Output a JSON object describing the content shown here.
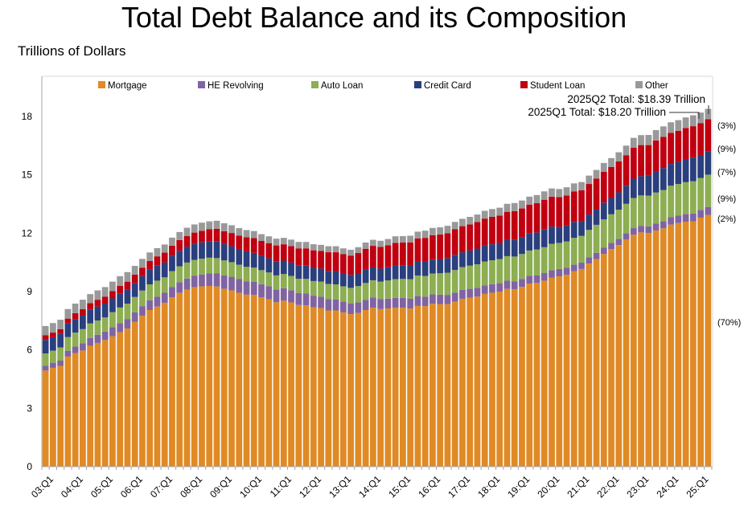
{
  "chart_data": {
    "type": "bar",
    "stacked": true,
    "title": "Total Debt Balance and its Composition",
    "ylabel": "Trillions of Dollars",
    "ylim": [
      0,
      19.5
    ],
    "yticks": [
      0,
      3,
      6,
      9,
      12,
      15,
      18
    ],
    "xtick_labels": [
      "03:Q1",
      "04:Q1",
      "05:Q1",
      "06:Q1",
      "07:Q1",
      "08:Q1",
      "09:Q1",
      "10:Q1",
      "11:Q1",
      "12:Q1",
      "13:Q1",
      "14:Q1",
      "15:Q1",
      "16:Q1",
      "17:Q1",
      "18:Q1",
      "19:Q1",
      "20:Q1",
      "21:Q1",
      "22:Q1",
      "23:Q1",
      "24:Q1",
      "25:Q1"
    ],
    "x_start": "2003Q1",
    "x_end": "2025Q2",
    "legend_position": "top",
    "grid": false,
    "annotations": [
      "2025Q2 Total: $18.39 Trillion",
      "2025Q1 Total: $18.20 Trillion"
    ],
    "share_labels": [
      "(3%)",
      "(9%)",
      "(7%)",
      "(9%)",
      "(2%)",
      "(70%)"
    ],
    "series": [
      {
        "name": "Mortgage",
        "color": "#E08A25",
        "values": [
          4.94,
          5.08,
          5.18,
          5.66,
          5.84,
          5.97,
          6.21,
          6.36,
          6.51,
          6.7,
          6.91,
          7.1,
          7.44,
          7.76,
          8.05,
          8.23,
          8.42,
          8.71,
          8.93,
          9.1,
          9.23,
          9.27,
          9.29,
          9.26,
          9.14,
          9.06,
          8.94,
          8.84,
          8.83,
          8.7,
          8.61,
          8.45,
          8.53,
          8.44,
          8.31,
          8.29,
          8.19,
          8.15,
          8.03,
          8.03,
          7.93,
          7.84,
          7.9,
          8.05,
          8.17,
          8.1,
          8.13,
          8.17,
          8.17,
          8.12,
          8.26,
          8.25,
          8.37,
          8.36,
          8.35,
          8.48,
          8.63,
          8.69,
          8.74,
          8.88,
          8.94,
          9.0,
          9.14,
          9.12,
          9.24,
          9.41,
          9.44,
          9.56,
          9.71,
          9.78,
          9.86,
          10.04,
          10.16,
          10.44,
          10.67,
          10.93,
          11.18,
          11.39,
          11.67,
          11.92,
          12.04,
          12.01,
          12.14,
          12.25,
          12.44,
          12.52,
          12.59,
          12.61,
          12.8,
          12.94
        ]
      },
      {
        "name": "HE Revolving",
        "color": "#8064A2",
        "values": [
          0.24,
          0.26,
          0.27,
          0.3,
          0.33,
          0.37,
          0.4,
          0.42,
          0.43,
          0.47,
          0.47,
          0.49,
          0.49,
          0.49,
          0.5,
          0.51,
          0.52,
          0.53,
          0.55,
          0.57,
          0.59,
          0.61,
          0.64,
          0.67,
          0.69,
          0.7,
          0.7,
          0.69,
          0.68,
          0.68,
          0.66,
          0.65,
          0.64,
          0.63,
          0.62,
          0.61,
          0.6,
          0.59,
          0.58,
          0.56,
          0.55,
          0.54,
          0.54,
          0.53,
          0.53,
          0.52,
          0.51,
          0.51,
          0.51,
          0.51,
          0.51,
          0.49,
          0.49,
          0.48,
          0.48,
          0.47,
          0.46,
          0.45,
          0.45,
          0.44,
          0.44,
          0.43,
          0.42,
          0.41,
          0.41,
          0.4,
          0.4,
          0.39,
          0.39,
          0.38,
          0.36,
          0.35,
          0.33,
          0.32,
          0.32,
          0.32,
          0.32,
          0.32,
          0.32,
          0.34,
          0.34,
          0.34,
          0.35,
          0.36,
          0.38,
          0.38,
          0.39,
          0.4,
          0.4,
          0.41
        ]
      },
      {
        "name": "Auto Loan",
        "color": "#8DAE52",
        "values": [
          0.64,
          0.62,
          0.68,
          0.7,
          0.72,
          0.73,
          0.75,
          0.73,
          0.73,
          0.77,
          0.8,
          0.79,
          0.79,
          0.8,
          0.82,
          0.82,
          0.79,
          0.81,
          0.82,
          0.82,
          0.81,
          0.81,
          0.81,
          0.79,
          0.77,
          0.75,
          0.74,
          0.74,
          0.72,
          0.72,
          0.71,
          0.73,
          0.73,
          0.73,
          0.73,
          0.75,
          0.75,
          0.77,
          0.78,
          0.78,
          0.79,
          0.81,
          0.84,
          0.86,
          0.88,
          0.89,
          0.93,
          0.96,
          0.97,
          1.01,
          1.05,
          1.06,
          1.07,
          1.1,
          1.14,
          1.16,
          1.17,
          1.19,
          1.21,
          1.22,
          1.23,
          1.24,
          1.26,
          1.27,
          1.28,
          1.3,
          1.32,
          1.33,
          1.35,
          1.34,
          1.36,
          1.37,
          1.37,
          1.41,
          1.44,
          1.46,
          1.47,
          1.5,
          1.52,
          1.55,
          1.56,
          1.58,
          1.6,
          1.61,
          1.62,
          1.63,
          1.64,
          1.66,
          1.64,
          1.66
        ]
      },
      {
        "name": "Credit Card",
        "color": "#2A3F7E",
        "values": [
          0.69,
          0.69,
          0.69,
          0.7,
          0.68,
          0.69,
          0.7,
          0.72,
          0.71,
          0.71,
          0.73,
          0.74,
          0.72,
          0.74,
          0.75,
          0.77,
          0.76,
          0.78,
          0.8,
          0.82,
          0.82,
          0.84,
          0.85,
          0.87,
          0.84,
          0.82,
          0.81,
          0.8,
          0.76,
          0.74,
          0.73,
          0.73,
          0.69,
          0.69,
          0.69,
          0.7,
          0.68,
          0.67,
          0.67,
          0.68,
          0.66,
          0.67,
          0.67,
          0.68,
          0.66,
          0.67,
          0.68,
          0.7,
          0.68,
          0.7,
          0.71,
          0.73,
          0.71,
          0.73,
          0.75,
          0.78,
          0.76,
          0.78,
          0.81,
          0.83,
          0.82,
          0.83,
          0.84,
          0.87,
          0.85,
          0.87,
          0.88,
          0.93,
          0.89,
          0.82,
          0.81,
          0.82,
          0.77,
          0.79,
          0.8,
          0.86,
          0.84,
          0.89,
          0.93,
          0.99,
          0.99,
          1.03,
          1.08,
          1.13,
          1.12,
          1.14,
          1.17,
          1.21,
          1.18,
          1.21
        ]
      },
      {
        "name": "Student Loan",
        "color": "#C00010",
        "values": [
          0.24,
          0.24,
          0.25,
          0.25,
          0.32,
          0.33,
          0.34,
          0.35,
          0.36,
          0.37,
          0.38,
          0.39,
          0.43,
          0.44,
          0.45,
          0.48,
          0.51,
          0.53,
          0.55,
          0.55,
          0.58,
          0.59,
          0.61,
          0.64,
          0.66,
          0.68,
          0.69,
          0.72,
          0.76,
          0.76,
          0.78,
          0.81,
          0.84,
          0.85,
          0.87,
          0.87,
          0.9,
          0.91,
          0.96,
          0.97,
          0.99,
          0.99,
          1.03,
          1.08,
          1.11,
          1.12,
          1.13,
          1.16,
          1.19,
          1.19,
          1.2,
          1.23,
          1.26,
          1.26,
          1.28,
          1.31,
          1.34,
          1.34,
          1.36,
          1.38,
          1.41,
          1.41,
          1.44,
          1.46,
          1.49,
          1.49,
          1.5,
          1.51,
          1.54,
          1.54,
          1.55,
          1.56,
          1.58,
          1.57,
          1.58,
          1.58,
          1.59,
          1.59,
          1.57,
          1.6,
          1.6,
          1.57,
          1.6,
          1.6,
          1.6,
          1.59,
          1.61,
          1.62,
          1.63,
          1.64
        ]
      },
      {
        "name": "Other",
        "color": "#999999",
        "values": [
          0.48,
          0.49,
          0.48,
          0.49,
          0.49,
          0.49,
          0.47,
          0.48,
          0.49,
          0.49,
          0.5,
          0.49,
          0.45,
          0.45,
          0.44,
          0.42,
          0.42,
          0.41,
          0.41,
          0.42,
          0.42,
          0.42,
          0.41,
          0.41,
          0.41,
          0.4,
          0.38,
          0.37,
          0.36,
          0.35,
          0.35,
          0.35,
          0.33,
          0.33,
          0.33,
          0.33,
          0.31,
          0.31,
          0.31,
          0.31,
          0.3,
          0.3,
          0.3,
          0.32,
          0.31,
          0.31,
          0.32,
          0.34,
          0.33,
          0.34,
          0.35,
          0.37,
          0.37,
          0.37,
          0.38,
          0.38,
          0.38,
          0.39,
          0.39,
          0.4,
          0.4,
          0.4,
          0.41,
          0.42,
          0.41,
          0.41,
          0.42,
          0.43,
          0.42,
          0.41,
          0.42,
          0.42,
          0.42,
          0.43,
          0.44,
          0.46,
          0.46,
          0.47,
          0.49,
          0.5,
          0.51,
          0.52,
          0.53,
          0.54,
          0.54,
          0.55,
          0.55,
          0.56,
          0.55,
          0.53
        ]
      }
    ]
  }
}
